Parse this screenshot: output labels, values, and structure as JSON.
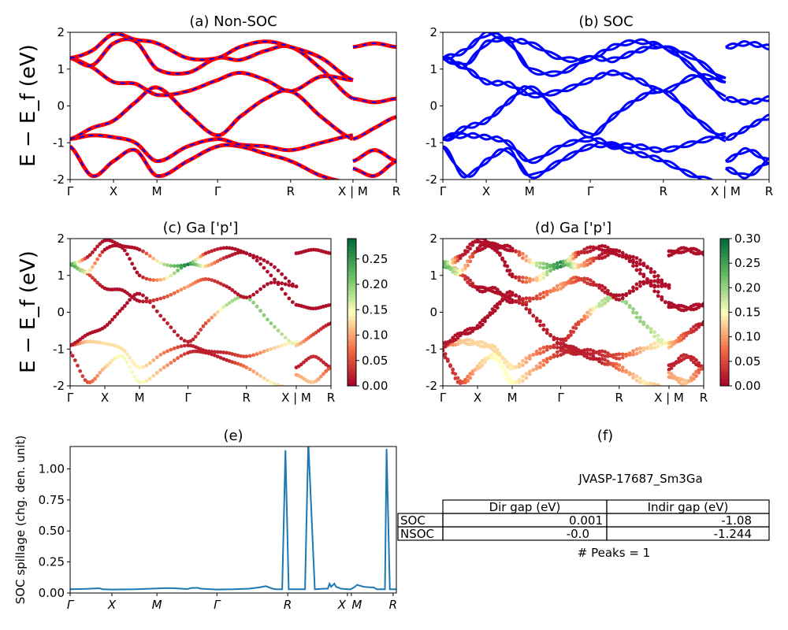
{
  "chart_data": [
    {
      "id": "a",
      "type": "line",
      "title": "(a) Non-SOC",
      "ylabel": "E − E_f (eV)",
      "ylim": [
        -2,
        2
      ],
      "yticks": [
        "-2",
        "-1",
        "0",
        "1",
        "2"
      ],
      "xticks": [
        {
          "pos": 0,
          "label": "Γ"
        },
        {
          "pos": 0.133,
          "label": "X"
        },
        {
          "pos": 0.266,
          "label": "M"
        },
        {
          "pos": 0.452,
          "label": "Γ"
        },
        {
          "pos": 0.676,
          "label": "R"
        },
        {
          "pos": 0.867,
          "label": "X | M"
        },
        {
          "pos": 1,
          "label": "R"
        }
      ],
      "colors": {
        "line": "#ff0000",
        "overlay": "#0000ff"
      }
    },
    {
      "id": "b",
      "type": "line",
      "title": "(b) SOC",
      "ylim": [
        -2,
        2
      ],
      "yticks": [
        "-2",
        "-1",
        "0",
        "1",
        "2"
      ],
      "xticks": [
        {
          "pos": 0,
          "label": "Γ"
        },
        {
          "pos": 0.133,
          "label": "X"
        },
        {
          "pos": 0.266,
          "label": "M"
        },
        {
          "pos": 0.452,
          "label": "Γ"
        },
        {
          "pos": 0.676,
          "label": "R"
        },
        {
          "pos": 0.867,
          "label": "X | M"
        },
        {
          "pos": 1,
          "label": "R"
        }
      ],
      "colors": {
        "line": "#0000ff"
      }
    },
    {
      "id": "c",
      "type": "scatter",
      "title": "(c)  Ga ['p']",
      "ylabel": "E − E_f (eV)",
      "ylim": [
        -2,
        2
      ],
      "yticks": [
        "-2",
        "-1",
        "0",
        "1",
        "2"
      ],
      "xticks": [
        {
          "pos": 0,
          "label": "Γ"
        },
        {
          "pos": 0.133,
          "label": "X"
        },
        {
          "pos": 0.266,
          "label": "M"
        },
        {
          "pos": 0.452,
          "label": "Γ"
        },
        {
          "pos": 0.676,
          "label": "R"
        },
        {
          "pos": 0.867,
          "label": "X | M"
        },
        {
          "pos": 1,
          "label": "R"
        }
      ],
      "colormap": "RdYlGn",
      "clim": [
        0,
        0.29
      ],
      "cbar_ticks": [
        "0.00",
        "0.05",
        "0.10",
        "0.15",
        "0.20",
        "0.25"
      ]
    },
    {
      "id": "d",
      "type": "scatter",
      "title": "(d) Ga ['p']",
      "ylim": [
        -2,
        2
      ],
      "yticks": [
        "-2",
        "-1",
        "0",
        "1",
        "2"
      ],
      "xticks": [
        {
          "pos": 0,
          "label": "Γ"
        },
        {
          "pos": 0.133,
          "label": "X"
        },
        {
          "pos": 0.266,
          "label": "M"
        },
        {
          "pos": 0.452,
          "label": "Γ"
        },
        {
          "pos": 0.676,
          "label": "R"
        },
        {
          "pos": 0.867,
          "label": "X | M"
        },
        {
          "pos": 1,
          "label": "R"
        }
      ],
      "colormap": "RdYlGn",
      "clim": [
        0,
        0.3
      ],
      "cbar_ticks": [
        "0.00",
        "0.05",
        "0.10",
        "0.15",
        "0.20",
        "0.25",
        "0.30"
      ]
    },
    {
      "id": "e",
      "type": "line",
      "title": "(e)",
      "ylabel": "SOC spillage (chg. den. unit)",
      "ylim": [
        0,
        1.18
      ],
      "yticks": [
        "0.00",
        "0.25",
        "0.50",
        "0.75",
        "1.00"
      ],
      "xticks": [
        {
          "pos": 0,
          "label": "Γ"
        },
        {
          "pos": 0.128,
          "label": "X"
        },
        {
          "pos": 0.266,
          "label": "M"
        },
        {
          "pos": 0.45,
          "label": "Γ"
        },
        {
          "pos": 0.667,
          "label": "R"
        },
        {
          "pos": 0.85,
          "label": "X"
        },
        {
          "pos": 0.862,
          "label": "M"
        },
        {
          "pos": 0.99,
          "label": "R"
        }
      ],
      "color": "#1f77b4",
      "x": [
        0,
        0.05,
        0.09,
        0.1,
        0.13,
        0.2,
        0.25,
        0.3,
        0.32,
        0.36,
        0.37,
        0.39,
        0.4,
        0.45,
        0.5,
        0.55,
        0.58,
        0.6,
        0.62,
        0.63,
        0.65,
        0.66,
        0.67,
        0.72,
        0.73,
        0.75,
        0.78,
        0.79,
        0.795,
        0.8,
        0.81,
        0.815,
        0.83,
        0.85,
        0.86,
        0.87,
        0.88,
        0.9,
        0.92,
        0.93,
        0.94,
        0.96,
        0.965,
        0.97,
        0.98,
        0.99,
        1
      ],
      "y": [
        0.03,
        0.033,
        0.038,
        0.03,
        0.028,
        0.03,
        0.035,
        0.04,
        0.038,
        0.032,
        0.04,
        0.042,
        0.035,
        0.028,
        0.03,
        0.035,
        0.045,
        0.055,
        0.035,
        0.03,
        0.03,
        1.15,
        0.03,
        0.03,
        1.22,
        0.03,
        0.035,
        0.035,
        0.075,
        0.05,
        0.075,
        0.05,
        0.035,
        0.03,
        0.03,
        0.045,
        0.065,
        0.05,
        0.045,
        0.045,
        0.03,
        0.03,
        0.03,
        1.16,
        0.03,
        0.03,
        0.03
      ]
    }
  ],
  "bands": {
    "seg1_x": [
      0,
      0.067,
      0.133,
      0.2,
      0.266,
      0.36,
      0.452,
      0.52,
      0.6,
      0.676,
      0.77,
      0.867
    ],
    "seg1": [
      {
        "e": [
          -1.1,
          -1.9,
          -1.5,
          -1.2,
          -1.9,
          -1.5,
          -1.1,
          -1.1,
          -1.3,
          -1.5,
          -1.9,
          -2.1
        ],
        "w": [
          0.02,
          0.05,
          0.12,
          0.15,
          0.15,
          0.1,
          0.03,
          0.02,
          0.02,
          0.08,
          0.14,
          0.1
        ]
      },
      {
        "e": [
          -0.9,
          -0.8,
          -0.85,
          -1.0,
          -1.5,
          -1.1,
          -0.9,
          -1.05,
          -1.1,
          -1.2,
          -1.0,
          -0.8
        ],
        "w": [
          0.05,
          0.12,
          0.13,
          0.13,
          0.14,
          0.08,
          0.02,
          0.02,
          0.03,
          0.05,
          0.12,
          0.15
        ]
      },
      {
        "e": [
          -0.9,
          -0.6,
          -0.4,
          0.1,
          0.5,
          -0.2,
          -0.8,
          -0.3,
          0.2,
          0.4,
          -0.3,
          -0.9
        ],
        "w": [
          0.02,
          0.01,
          0.01,
          0.01,
          0.01,
          0.02,
          0.02,
          0.05,
          0.18,
          0.2,
          0.2,
          0.15
        ]
      },
      {
        "e": [
          1.3,
          1.05,
          0.65,
          0.6,
          0.3,
          0.4,
          0.7,
          0.9,
          0.7,
          0.4,
          0.8,
          0.7
        ],
        "w": [
          0.25,
          0.05,
          0.01,
          0.01,
          0.01,
          0.05,
          0.1,
          0.05,
          0.02,
          0.01,
          0.01,
          0.01
        ]
      },
      {
        "e": [
          1.3,
          1.1,
          1.7,
          1.75,
          1.0,
          0.9,
          1.3,
          1.25,
          1.5,
          1.6,
          1.0,
          0.2
        ],
        "w": [
          0.25,
          0.15,
          0.01,
          0.01,
          0.01,
          0.12,
          0.28,
          0.12,
          0.02,
          0.01,
          0.01,
          0.01
        ]
      },
      {
        "e": [
          1.3,
          1.5,
          1.95,
          1.8,
          1.7,
          1.3,
          1.3,
          1.6,
          1.75,
          1.6,
          1.3,
          0.7
        ],
        "w": [
          0.25,
          0.02,
          0.01,
          0.01,
          0.01,
          0.18,
          0.27,
          0.03,
          0.01,
          0.01,
          0.01,
          0.01
        ]
      }
    ],
    "seg2_x": [
      0.867,
      0.933,
      1
    ],
    "seg2": [
      {
        "e": [
          0.2,
          0.1,
          0.2
        ],
        "w": [
          0.01,
          0.01,
          0.01
        ]
      },
      {
        "e": [
          -1.5,
          -1.2,
          -1.5
        ],
        "w": [
          0.02,
          0.03,
          0.02
        ]
      },
      {
        "e": [
          -1.7,
          -1.9,
          -1.5
        ],
        "w": [
          0.1,
          0.12,
          0.05
        ]
      },
      {
        "e": [
          1.6,
          1.7,
          1.6
        ],
        "w": [
          0.01,
          0.01,
          0.01
        ]
      },
      {
        "e": [
          -0.9,
          -0.6,
          -0.3
        ],
        "w": [
          0.12,
          0.05,
          0.01
        ]
      }
    ]
  },
  "panel_f": {
    "title": "(f)",
    "material": "JVASP-17687_Sm3Ga",
    "columns": [
      "Dir gap (eV)",
      "Indir gap (eV)"
    ],
    "rows": [
      {
        "label": "SOC",
        "dir": "0.001",
        "indir": "-1.08"
      },
      {
        "label": "NSOC",
        "dir": "-0.0",
        "indir": "-1.244"
      }
    ],
    "peaks": "# Peaks = 1"
  }
}
